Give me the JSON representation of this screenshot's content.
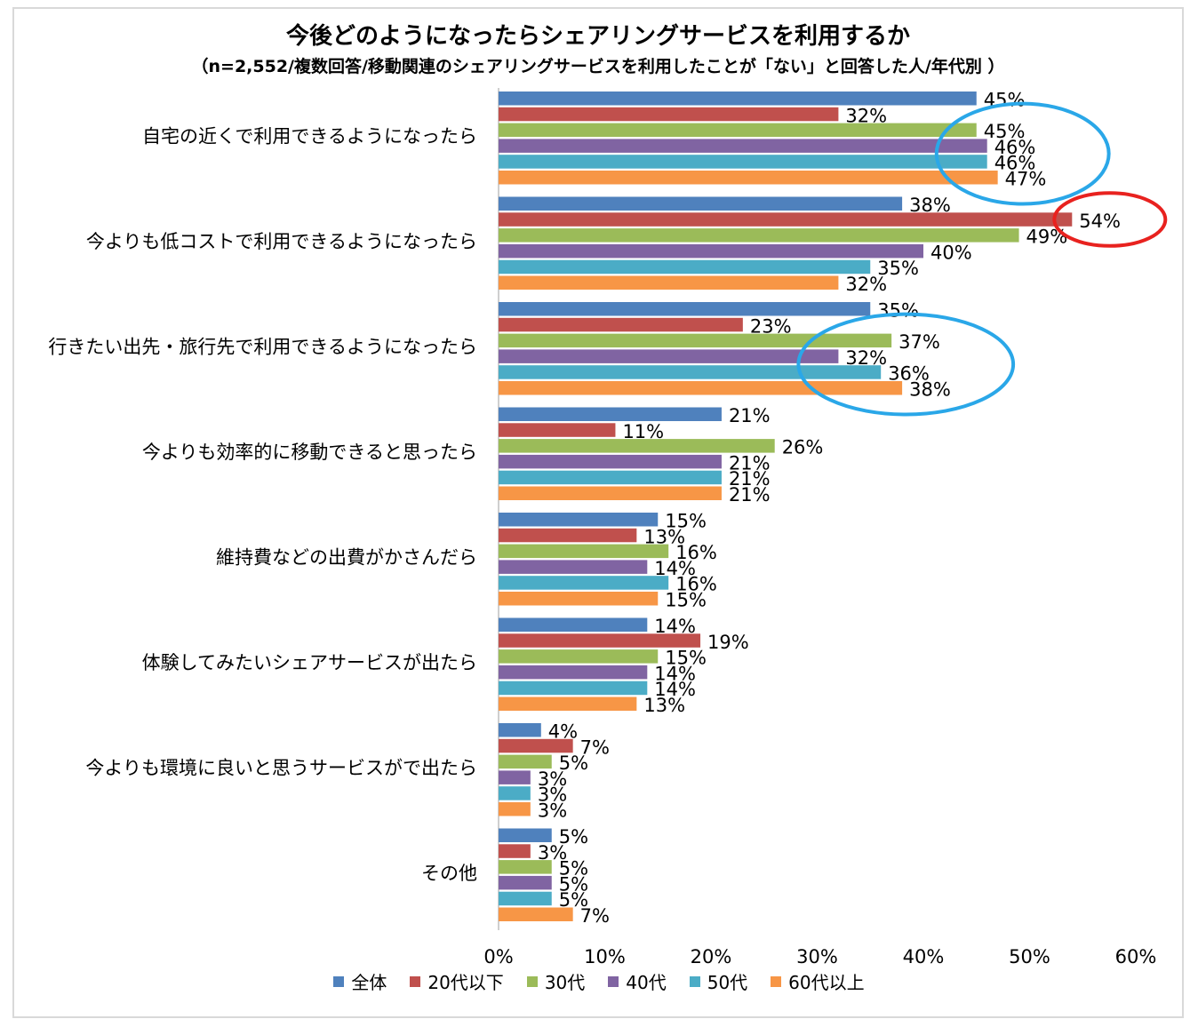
{
  "chart_data": {
    "type": "bar",
    "orientation": "horizontal",
    "title": "今後どのようになったらシェアリングサービスを利用するか",
    "subtitle": "（n=2,552/複数回答/移動関連のシェアリングサービスを利用したことが「ない」と回答した人/年代別 ）",
    "categories": [
      "自宅の近くで利用できるようになったら",
      "今よりも低コストで利用できるようになったら",
      "行きたい出先・旅行先で利用できるようになったら",
      "今よりも効率的に移動できると思ったら",
      "維持費などの出費がかさんだら",
      "体験してみたいシェアサービスが出たら",
      "今よりも環境に良いと思うサービスがで出たら",
      "その他"
    ],
    "series": [
      {
        "name": "全体",
        "color": "#4f81bd",
        "values": [
          45,
          38,
          35,
          21,
          15,
          14,
          4,
          5
        ]
      },
      {
        "name": "20代以下",
        "color": "#c0504d",
        "values": [
          32,
          54,
          23,
          11,
          13,
          19,
          7,
          3
        ]
      },
      {
        "name": "30代",
        "color": "#9bbb59",
        "values": [
          45,
          49,
          37,
          26,
          16,
          15,
          5,
          5
        ]
      },
      {
        "name": "40代",
        "color": "#8064a2",
        "values": [
          46,
          40,
          32,
          21,
          14,
          14,
          3,
          5
        ]
      },
      {
        "name": "50代",
        "color": "#4bacc6",
        "values": [
          46,
          35,
          36,
          21,
          16,
          14,
          3,
          5
        ]
      },
      {
        "name": "60代以上",
        "color": "#f79646",
        "values": [
          47,
          32,
          38,
          21,
          15,
          13,
          3,
          7
        ]
      }
    ],
    "xlim": [
      0,
      60
    ],
    "xticks": [
      "0%",
      "10%",
      "20%",
      "30%",
      "40%",
      "50%",
      "60%"
    ],
    "value_suffix": "%",
    "highlights": [
      {
        "category_index": 0,
        "series_from": 2,
        "series_to": 5,
        "color": "#2aa7e8"
      },
      {
        "category_index": 1,
        "series_from": 1,
        "series_to": 1,
        "color": "#e8221f"
      },
      {
        "category_index": 2,
        "series_from": 2,
        "series_to": 5,
        "color": "#2aa7e8"
      }
    ],
    "legend_position": "bottom"
  }
}
